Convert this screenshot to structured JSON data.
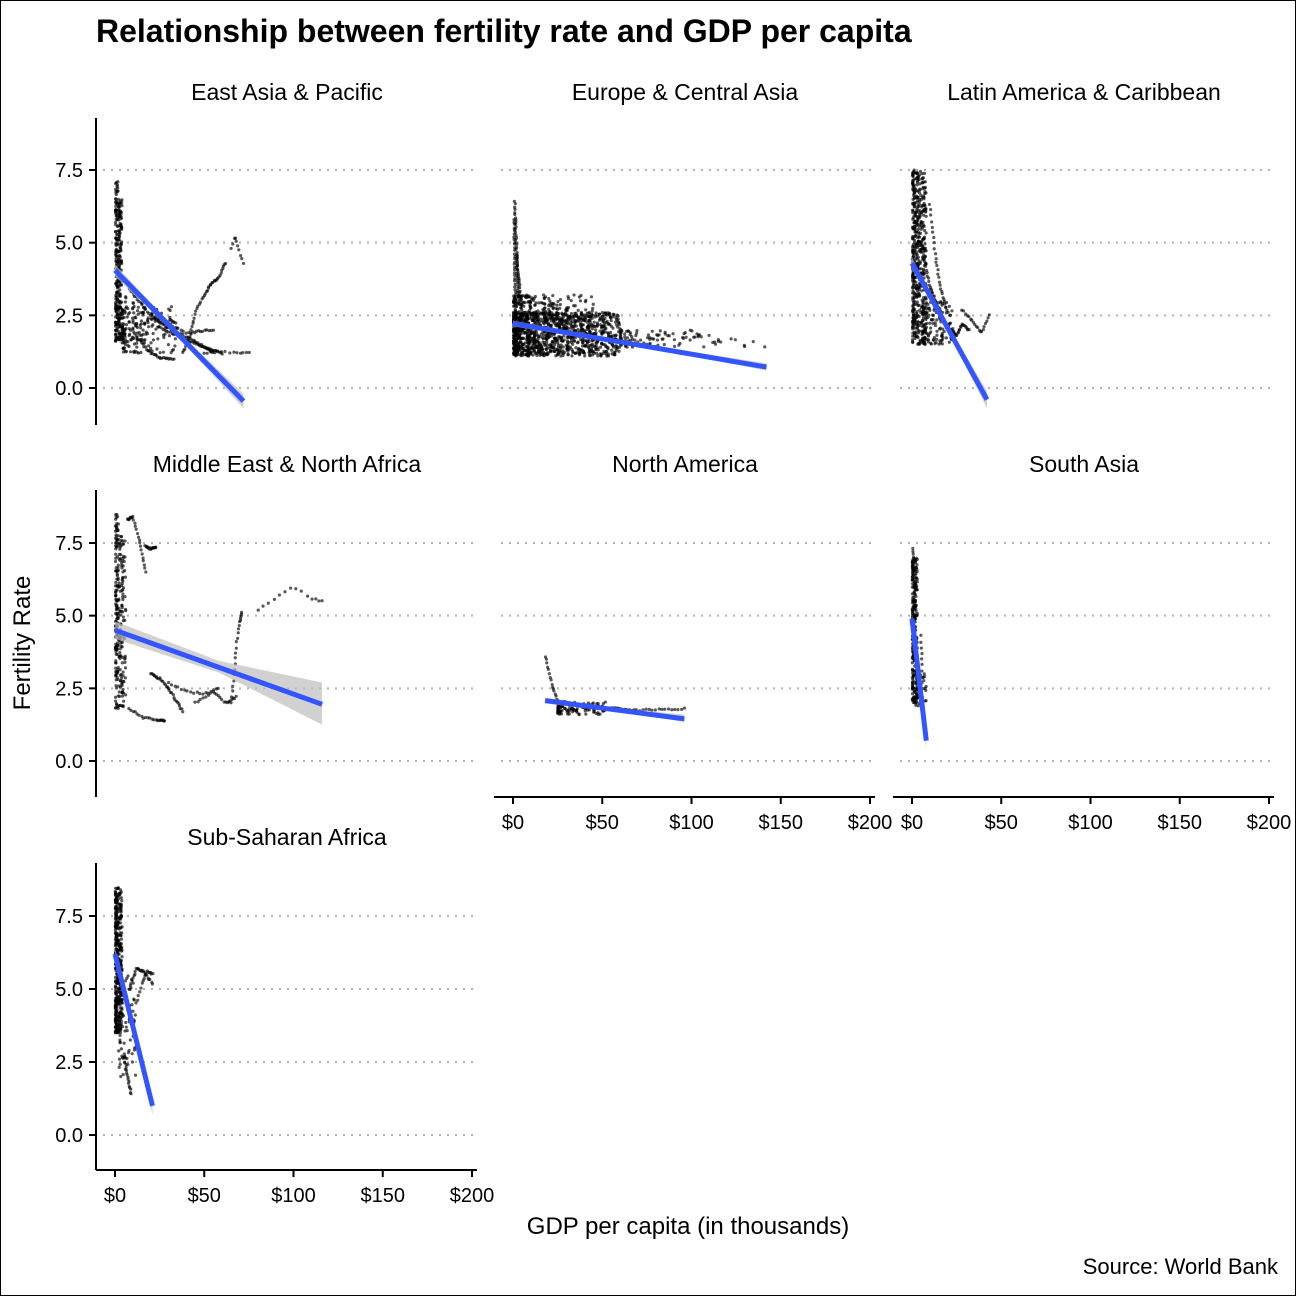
{
  "chart_data": {
    "type": "scatter",
    "title": "Relationship between fertility rate and GDP per capita",
    "xlabel": "GDP per capita (in thousands)",
    "ylabel": "Fertility Rate",
    "caption": "Source: World Bank",
    "xlim": [
      0,
      200
    ],
    "ylim": [
      -1.2,
      9.3
    ],
    "x_ticks": [
      0,
      50,
      100,
      150,
      200
    ],
    "x_tick_labels": [
      "$0",
      "$50",
      "$100",
      "$150",
      "$200"
    ],
    "y_ticks": [
      0,
      2.5,
      5,
      7.5
    ],
    "y_tick_labels": [
      "0.0",
      "2.5",
      "5.0",
      "7.5"
    ],
    "grid": "horizontal dotted",
    "point_color": "#000000",
    "trend_color": "#3355ff",
    "ci_color": "#bdbdbd",
    "panels": [
      {
        "name": "East Asia & Pacific",
        "trend": {
          "x": [
            0,
            72
          ],
          "y": [
            4.05,
            -0.45
          ]
        },
        "ci": {
          "x": [
            0,
            36,
            72
          ],
          "lo": [
            3.85,
            1.7,
            -0.7
          ],
          "hi": [
            4.25,
            1.9,
            -0.2
          ]
        },
        "clusters": [
          {
            "x": [
              0.3,
              4
            ],
            "y": [
              1.6,
              6.5
            ],
            "n": 260
          },
          {
            "x": [
              0.3,
              2
            ],
            "y": [
              6.2,
              7.2
            ],
            "n": 20
          },
          {
            "x": [
              4,
              35
            ],
            "y": [
              1.2,
              2.8
            ],
            "n": 160
          },
          {
            "x": [
              2,
              18
            ],
            "y": [
              1.6,
              3.2
            ],
            "n": 60
          }
        ],
        "paths": [
          {
            "x": [
              22,
              32,
              45,
              55
            ],
            "y": [
              2.4,
              2.0,
              1.6,
              1.2
            ],
            "n": 40
          },
          {
            "x": [
              25,
              38,
              50,
              60
            ],
            "y": [
              2.1,
              1.7,
              1.4,
              1.2
            ],
            "n": 40
          },
          {
            "x": [
              38,
              42,
              45,
              50,
              54,
              58,
              62
            ],
            "y": [
              1.2,
              1.8,
              2.6,
              3.2,
              3.6,
              3.8,
              4.3
            ],
            "n": 45
          },
          {
            "x": [
              65,
              67,
              68,
              70,
              72
            ],
            "y": [
              4.8,
              5.2,
              5.0,
              4.6,
              4.3
            ],
            "n": 10
          },
          {
            "x": [
              8,
              20,
              40,
              55
            ],
            "y": [
              3.4,
              2.5,
              1.9,
              2.0
            ],
            "n": 40
          },
          {
            "x": [
              50,
              58,
              68,
              75
            ],
            "y": [
              1.2,
              1.25,
              1.2,
              1.2
            ],
            "n": 14
          },
          {
            "x": [
              12,
              18,
              25,
              33
            ],
            "y": [
              1.8,
              1.3,
              1.05,
              1.0
            ],
            "n": 30
          }
        ]
      },
      {
        "name": "Europe & Central Asia",
        "trend": {
          "x": [
            0,
            142
          ],
          "y": [
            2.22,
            0.72
          ]
        },
        "ci": {
          "x": [
            0,
            71,
            142
          ],
          "lo": [
            2.12,
            1.43,
            0.6
          ],
          "hi": [
            2.32,
            1.53,
            0.85
          ]
        },
        "clusters": [
          {
            "x": [
              0.3,
              60
            ],
            "y": [
              1.1,
              2.6
            ],
            "n": 1100
          },
          {
            "x": [
              0.3,
              45
            ],
            "y": [
              2.3,
              3.2
            ],
            "n": 200
          },
          {
            "x": [
              60,
              110
            ],
            "y": [
              1.4,
              2.0
            ],
            "n": 90
          },
          {
            "x": [
              110,
              142
            ],
            "y": [
              1.4,
              1.7
            ],
            "n": 12
          }
        ],
        "paths": [
          {
            "x": [
              1,
              3
            ],
            "y": [
              6.4,
              3.0
            ],
            "n": 40
          },
          {
            "x": [
              0.5,
              1.5
            ],
            "y": [
              5.8,
              2.5
            ],
            "n": 35
          },
          {
            "x": [
              2,
              5
            ],
            "y": [
              4.6,
              2.6
            ],
            "n": 25
          }
        ]
      },
      {
        "name": "Latin America & Caribbean",
        "trend": {
          "x": [
            0,
            42
          ],
          "y": [
            4.3,
            -0.4
          ]
        },
        "ci": {
          "x": [
            0,
            21,
            42
          ],
          "lo": [
            4.1,
            1.85,
            -0.7
          ],
          "hi": [
            4.5,
            2.05,
            -0.1
          ]
        },
        "clusters": [
          {
            "x": [
              0.3,
              8
            ],
            "y": [
              1.5,
              7.5
            ],
            "n": 500
          },
          {
            "x": [
              6,
              24
            ],
            "y": [
              1.5,
              3.0
            ],
            "n": 130
          }
        ],
        "paths": [
          {
            "x": [
              10,
              13,
              16,
              20
            ],
            "y": [
              6.3,
              4.6,
              3.4,
              2.6
            ],
            "n": 28
          },
          {
            "x": [
              22,
              25,
              28,
              32
            ],
            "y": [
              2.0,
              1.8,
              2.2,
              2.0
            ],
            "n": 24
          },
          {
            "x": [
              28,
              34,
              39,
              43
            ],
            "y": [
              2.7,
              2.3,
              1.9,
              2.5
            ],
            "n": 20
          },
          {
            "x": [
              5,
              10,
              15
            ],
            "y": [
              5.0,
              3.5,
              2.7
            ],
            "n": 30
          }
        ]
      },
      {
        "name": "Middle East & North Africa",
        "trend": {
          "x": [
            0,
            116
          ],
          "y": [
            4.5,
            1.95
          ]
        },
        "ci": {
          "x": [
            0,
            58,
            116
          ],
          "lo": [
            4.2,
            3.05,
            1.25
          ],
          "hi": [
            4.8,
            3.45,
            2.7
          ]
        },
        "clusters": [
          {
            "x": [
              0.3,
              6
            ],
            "y": [
              1.8,
              7.8
            ],
            "n": 260
          },
          {
            "x": [
              0.3,
              2
            ],
            "y": [
              7.3,
              8.6
            ],
            "n": 18
          }
        ],
        "paths": [
          {
            "x": [
              7,
              10,
              14,
              17
            ],
            "y": [
              8.3,
              8.4,
              7.5,
              6.5
            ],
            "n": 25
          },
          {
            "x": [
              17,
              20,
              23
            ],
            "y": [
              7.4,
              7.3,
              7.35
            ],
            "n": 16
          },
          {
            "x": [
              20,
              26,
              32,
              38
            ],
            "y": [
              3.0,
              2.8,
              2.3,
              1.7
            ],
            "n": 30
          },
          {
            "x": [
              8,
              16,
              24,
              28
            ],
            "y": [
              1.8,
              1.5,
              1.4,
              1.4
            ],
            "n": 22
          },
          {
            "x": [
              45,
              55,
              62,
              68
            ],
            "y": [
              2.0,
              2.4,
              2.0,
              2.2
            ],
            "n": 22
          },
          {
            "x": [
              65,
              67,
              68,
              70,
              71
            ],
            "y": [
              2.0,
              3.0,
              4.0,
              4.8,
              5.1
            ],
            "n": 22
          },
          {
            "x": [
              80,
              90,
              100,
              110,
              116
            ],
            "y": [
              5.2,
              5.6,
              6.0,
              5.6,
              5.5
            ],
            "n": 14
          },
          {
            "x": [
              30,
              40,
              50,
              58
            ],
            "y": [
              2.7,
              2.4,
              2.3,
              2.5
            ],
            "n": 18
          }
        ]
      },
      {
        "name": "North America",
        "trend": {
          "x": [
            18,
            96
          ],
          "y": [
            2.08,
            1.45
          ]
        },
        "ci": {
          "x": [
            18,
            57,
            96
          ],
          "lo": [
            1.98,
            1.7,
            1.35
          ],
          "hi": [
            2.18,
            1.82,
            1.6
          ]
        },
        "clusters": [
          {
            "x": [
              25,
              52
            ],
            "y": [
              1.6,
              2.05
            ],
            "n": 120
          }
        ],
        "paths": [
          {
            "x": [
              18,
              22,
              26
            ],
            "y": [
              3.6,
              2.6,
              1.9
            ],
            "n": 18
          },
          {
            "x": [
              50,
              70,
              96
            ],
            "y": [
              1.85,
              1.75,
              1.8
            ],
            "n": 30
          }
        ]
      },
      {
        "name": "South Asia",
        "trend": {
          "x": [
            0,
            8
          ],
          "y": [
            4.9,
            0.7
          ]
        },
        "ci": {
          "x": [
            0,
            4,
            8
          ],
          "lo": [
            4.7,
            2.7,
            0.4
          ],
          "hi": [
            5.1,
            2.9,
            1.0
          ]
        },
        "clusters": [
          {
            "x": [
              0.2,
              3
            ],
            "y": [
              2.0,
              7.0
            ],
            "n": 260
          },
          {
            "x": [
              2,
              8
            ],
            "y": [
              1.9,
              3.0
            ],
            "n": 40
          }
        ],
        "paths": [
          {
            "x": [
              0.5,
              1
            ],
            "y": [
              7.3,
              6.6
            ],
            "n": 8
          },
          {
            "x": [
              5,
              6
            ],
            "y": [
              4.3,
              2.5
            ],
            "n": 10
          }
        ]
      },
      {
        "name": "Sub-Saharan Africa",
        "trend": {
          "x": [
            0,
            21
          ],
          "y": [
            6.2,
            1.0
          ]
        },
        "ci": {
          "x": [
            0,
            10.5,
            21
          ],
          "lo": [
            6.0,
            3.5,
            0.7
          ],
          "hi": [
            6.4,
            3.7,
            1.3
          ]
        },
        "clusters": [
          {
            "x": [
              0.2,
              4
            ],
            "y": [
              3.5,
              8.5
            ],
            "n": 400
          },
          {
            "x": [
              2,
              12
            ],
            "y": [
              2.0,
              5.5
            ],
            "n": 80
          }
        ],
        "paths": [
          {
            "x": [
              8,
              12,
              16,
              21
            ],
            "y": [
              5.0,
              5.7,
              5.6,
              5.2
            ],
            "n": 25
          },
          {
            "x": [
              12,
              15,
              18,
              21
            ],
            "y": [
              4.5,
              5.2,
              5.6,
              5.5
            ],
            "n": 16
          },
          {
            "x": [
              5,
              7,
              9
            ],
            "y": [
              2.8,
              2.0,
              1.4
            ],
            "n": 18
          }
        ]
      }
    ]
  }
}
